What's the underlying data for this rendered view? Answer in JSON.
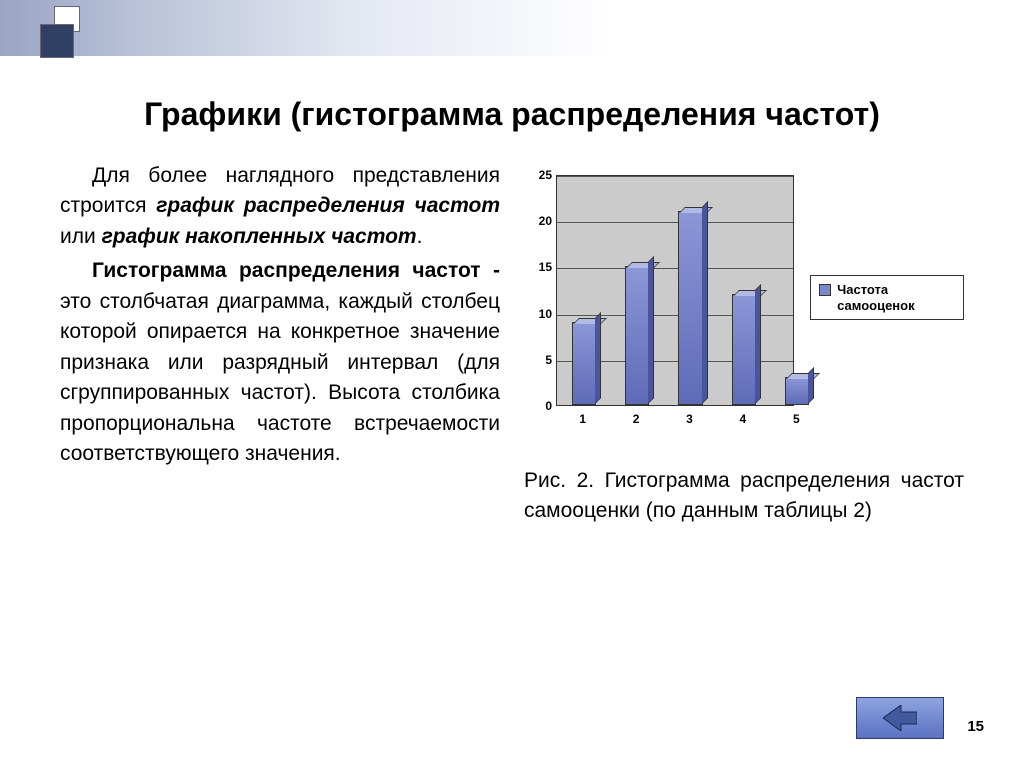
{
  "title": "Графики (гистограмма распределения частот)",
  "paragraph1_parts": {
    "a": "Для более наглядного представления строится ",
    "b": "график распределения частот",
    "c": " или ",
    "d": "график накопленных частот",
    "e": "."
  },
  "paragraph2_parts": {
    "a": "Гистограмма распределения частот - ",
    "b": "это столбчатая диаграмма, каждый столбец которой опирается на конкретное значение признака или разрядный интервал (для сгруппированных частот). Высота столбика пропорциональна частоте встречаемости соответствующего значения."
  },
  "caption": "Рис. 2. Гистограмма распределения частот самооценки (по данным таблицы 2)",
  "legend_label": "Частота самооценок",
  "page_number": "15",
  "chart": {
    "type": "bar",
    "categories": [
      "1",
      "2",
      "3",
      "4",
      "5"
    ],
    "values": [
      9,
      15,
      21,
      12,
      3
    ],
    "bar_color": "#7c88cc",
    "bar_top_color": "#b2bbe4",
    "bar_side_color": "#4a559e",
    "plot_bg": "#cbcbcb",
    "grid_color": "#555555",
    "border_color": "#333333",
    "ylim": [
      0,
      25
    ],
    "ytick_step": 5,
    "yticks": [
      "0",
      "5",
      "10",
      "15",
      "20",
      "25"
    ],
    "bar_width_pct": 9,
    "tick_fontsize": 12,
    "tick_fontweight": "bold"
  },
  "nav": {
    "bg_gradient_top": "#8fa4e0",
    "bg_gradient_bottom": "#5a72c2",
    "arrow_fill": "#415a9e",
    "arrow_stroke": "#1a2850"
  },
  "decor": {
    "sq_border": "#667788",
    "sq_light": "#ffffff",
    "sq_dark": "#2f4063"
  }
}
